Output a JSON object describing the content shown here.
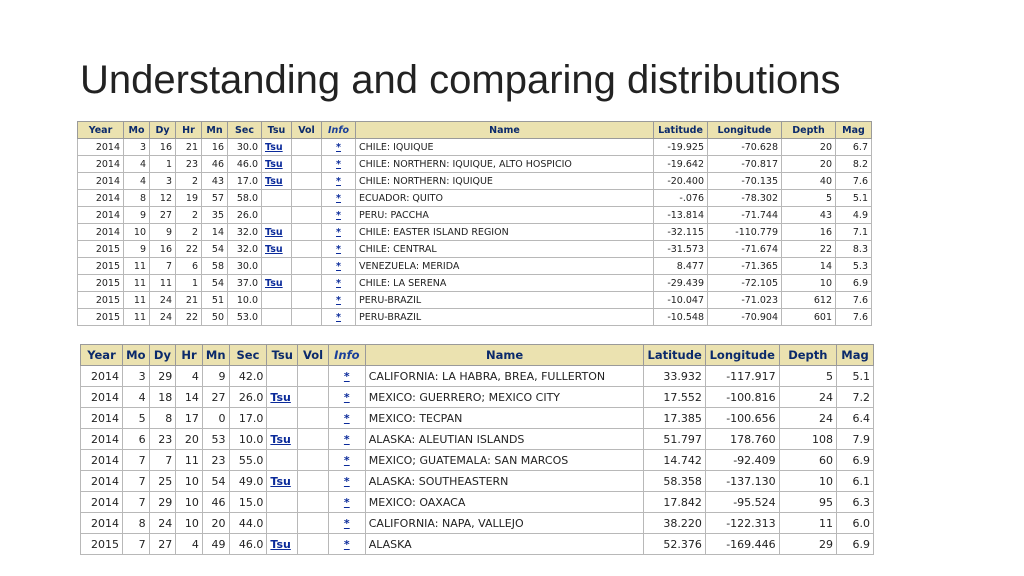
{
  "slide": {
    "title": "Understanding and comparing distributions"
  },
  "columns": [
    "Year",
    "Mo",
    "Dy",
    "Hr",
    "Mn",
    "Sec",
    "Tsu",
    "Vol",
    "Info",
    "Name",
    "Latitude",
    "Longitude",
    "Depth",
    "Mag"
  ],
  "table1": [
    {
      "year": "2014",
      "mo": "3",
      "dy": "16",
      "hr": "21",
      "mn": "16",
      "sec": "30.0",
      "tsu": "Tsu",
      "vol": "",
      "info": "*",
      "name": "CHILE: IQUIQUE",
      "lat": "-19.925",
      "lon": "-70.628",
      "depth": "20",
      "mag": "6.7"
    },
    {
      "year": "2014",
      "mo": "4",
      "dy": "1",
      "hr": "23",
      "mn": "46",
      "sec": "46.0",
      "tsu": "Tsu",
      "vol": "",
      "info": "*",
      "name": "CHILE: NORTHERN: IQUIQUE, ALTO HOSPICIO",
      "lat": "-19.642",
      "lon": "-70.817",
      "depth": "20",
      "mag": "8.2"
    },
    {
      "year": "2014",
      "mo": "4",
      "dy": "3",
      "hr": "2",
      "mn": "43",
      "sec": "17.0",
      "tsu": "Tsu",
      "vol": "",
      "info": "*",
      "name": "CHILE: NORTHERN: IQUIQUE",
      "lat": "-20.400",
      "lon": "-70.135",
      "depth": "40",
      "mag": "7.6"
    },
    {
      "year": "2014",
      "mo": "8",
      "dy": "12",
      "hr": "19",
      "mn": "57",
      "sec": "58.0",
      "tsu": "",
      "vol": "",
      "info": "*",
      "name": "ECUADOR: QUITO",
      "lat": "-.076",
      "lon": "-78.302",
      "depth": "5",
      "mag": "5.1"
    },
    {
      "year": "2014",
      "mo": "9",
      "dy": "27",
      "hr": "2",
      "mn": "35",
      "sec": "26.0",
      "tsu": "",
      "vol": "",
      "info": "*",
      "name": "PERU: PACCHA",
      "lat": "-13.814",
      "lon": "-71.744",
      "depth": "43",
      "mag": "4.9"
    },
    {
      "year": "2014",
      "mo": "10",
      "dy": "9",
      "hr": "2",
      "mn": "14",
      "sec": "32.0",
      "tsu": "Tsu",
      "vol": "",
      "info": "*",
      "name": "CHILE: EASTER ISLAND REGION",
      "lat": "-32.115",
      "lon": "-110.779",
      "depth": "16",
      "mag": "7.1"
    },
    {
      "year": "2015",
      "mo": "9",
      "dy": "16",
      "hr": "22",
      "mn": "54",
      "sec": "32.0",
      "tsu": "Tsu",
      "vol": "",
      "info": "*",
      "name": "CHILE: CENTRAL",
      "lat": "-31.573",
      "lon": "-71.674",
      "depth": "22",
      "mag": "8.3"
    },
    {
      "year": "2015",
      "mo": "11",
      "dy": "7",
      "hr": "6",
      "mn": "58",
      "sec": "30.0",
      "tsu": "",
      "vol": "",
      "info": "*",
      "name": "VENEZUELA: MERIDA",
      "lat": "8.477",
      "lon": "-71.365",
      "depth": "14",
      "mag": "5.3"
    },
    {
      "year": "2015",
      "mo": "11",
      "dy": "11",
      "hr": "1",
      "mn": "54",
      "sec": "37.0",
      "tsu": "Tsu",
      "vol": "",
      "info": "*",
      "name": "CHILE: LA SERENA",
      "lat": "-29.439",
      "lon": "-72.105",
      "depth": "10",
      "mag": "6.9"
    },
    {
      "year": "2015",
      "mo": "11",
      "dy": "24",
      "hr": "21",
      "mn": "51",
      "sec": "10.0",
      "tsu": "",
      "vol": "",
      "info": "*",
      "name": "PERU-BRAZIL",
      "lat": "-10.047",
      "lon": "-71.023",
      "depth": "612",
      "mag": "7.6"
    },
    {
      "year": "2015",
      "mo": "11",
      "dy": "24",
      "hr": "22",
      "mn": "50",
      "sec": "53.0",
      "tsu": "",
      "vol": "",
      "info": "*",
      "name": "PERU-BRAZIL",
      "lat": "-10.548",
      "lon": "-70.904",
      "depth": "601",
      "mag": "7.6"
    }
  ],
  "table2": [
    {
      "year": "2014",
      "mo": "3",
      "dy": "29",
      "hr": "4",
      "mn": "9",
      "sec": "42.0",
      "tsu": "",
      "vol": "",
      "info": "*",
      "name": "CALIFORNIA: LA HABRA, BREA, FULLERTON",
      "lat": "33.932",
      "lon": "-117.917",
      "depth": "5",
      "mag": "5.1"
    },
    {
      "year": "2014",
      "mo": "4",
      "dy": "18",
      "hr": "14",
      "mn": "27",
      "sec": "26.0",
      "tsu": "Tsu",
      "vol": "",
      "info": "*",
      "name": "MEXICO: GUERRERO; MEXICO CITY",
      "lat": "17.552",
      "lon": "-100.816",
      "depth": "24",
      "mag": "7.2"
    },
    {
      "year": "2014",
      "mo": "5",
      "dy": "8",
      "hr": "17",
      "mn": "0",
      "sec": "17.0",
      "tsu": "",
      "vol": "",
      "info": "*",
      "name": "MEXICO: TECPAN",
      "lat": "17.385",
      "lon": "-100.656",
      "depth": "24",
      "mag": "6.4"
    },
    {
      "year": "2014",
      "mo": "6",
      "dy": "23",
      "hr": "20",
      "mn": "53",
      "sec": "10.0",
      "tsu": "Tsu",
      "vol": "",
      "info": "*",
      "name": "ALASKA: ALEUTIAN ISLANDS",
      "lat": "51.797",
      "lon": "178.760",
      "depth": "108",
      "mag": "7.9"
    },
    {
      "year": "2014",
      "mo": "7",
      "dy": "7",
      "hr": "11",
      "mn": "23",
      "sec": "55.0",
      "tsu": "",
      "vol": "",
      "info": "*",
      "name": "MEXICO; GUATEMALA: SAN MARCOS",
      "lat": "14.742",
      "lon": "-92.409",
      "depth": "60",
      "mag": "6.9"
    },
    {
      "year": "2014",
      "mo": "7",
      "dy": "25",
      "hr": "10",
      "mn": "54",
      "sec": "49.0",
      "tsu": "Tsu",
      "vol": "",
      "info": "*",
      "name": "ALASKA: SOUTHEASTERN",
      "lat": "58.358",
      "lon": "-137.130",
      "depth": "10",
      "mag": "6.1"
    },
    {
      "year": "2014",
      "mo": "7",
      "dy": "29",
      "hr": "10",
      "mn": "46",
      "sec": "15.0",
      "tsu": "",
      "vol": "",
      "info": "*",
      "name": "MEXICO: OAXACA",
      "lat": "17.842",
      "lon": "-95.524",
      "depth": "95",
      "mag": "6.3"
    },
    {
      "year": "2014",
      "mo": "8",
      "dy": "24",
      "hr": "10",
      "mn": "20",
      "sec": "44.0",
      "tsu": "",
      "vol": "",
      "info": "*",
      "name": "CALIFORNIA: NAPA, VALLEJO",
      "lat": "38.220",
      "lon": "-122.313",
      "depth": "11",
      "mag": "6.0"
    },
    {
      "year": "2015",
      "mo": "7",
      "dy": "27",
      "hr": "4",
      "mn": "49",
      "sec": "46.0",
      "tsu": "Tsu",
      "vol": "",
      "info": "*",
      "name": "ALASKA",
      "lat": "52.376",
      "lon": "-169.446",
      "depth": "29",
      "mag": "6.9"
    }
  ]
}
